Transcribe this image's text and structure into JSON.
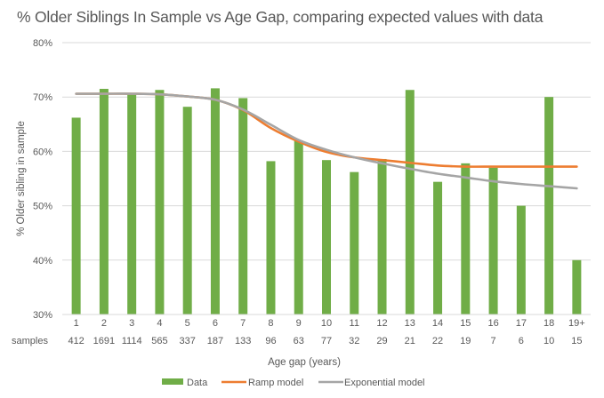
{
  "chart_data": {
    "type": "bar",
    "title": "% Older Siblings In Sample vs Age Gap, comparing expected values with data",
    "xlabel": "Age  gap (years)",
    "ylabel": "% Older sibling in sample",
    "ylim": [
      0.3,
      0.8
    ],
    "yticks": [
      "30%",
      "40%",
      "50%",
      "60%",
      "70%",
      "80%"
    ],
    "ytick_values": [
      0.3,
      0.4,
      0.5,
      0.6,
      0.7,
      0.8
    ],
    "grid": true,
    "legend_position": "bottom",
    "categories": [
      "1",
      "2",
      "3",
      "4",
      "5",
      "6",
      "7",
      "8",
      "9",
      "10",
      "11",
      "12",
      "13",
      "14",
      "15",
      "16",
      "17",
      "18",
      "19+"
    ],
    "row2_label": "samples",
    "samples": [
      "412",
      "1691",
      "1114",
      "565",
      "337",
      "187",
      "133",
      "96",
      "63",
      "77",
      "32",
      "29",
      "21",
      "22",
      "19",
      "7",
      "6",
      "10",
      "15"
    ],
    "series": [
      {
        "name": "Data",
        "kind": "bar",
        "color": "#70AD47",
        "values": [
          0.662,
          0.715,
          0.705,
          0.713,
          0.682,
          0.716,
          0.698,
          0.582,
          0.62,
          0.584,
          0.562,
          0.586,
          0.713,
          0.544,
          0.578,
          0.57,
          0.5,
          0.7,
          0.4
        ]
      },
      {
        "name": "Ramp model",
        "kind": "line",
        "color": "#ED7D31",
        "values": [
          0.706,
          0.706,
          0.706,
          0.705,
          0.701,
          0.695,
          0.676,
          0.643,
          0.618,
          0.599,
          0.589,
          0.584,
          0.579,
          0.574,
          0.572,
          0.572,
          0.572,
          0.572,
          0.572
        ]
      },
      {
        "name": "Exponential model",
        "kind": "line",
        "color": "#A5A5A5",
        "values": [
          0.706,
          0.706,
          0.706,
          0.705,
          0.701,
          0.695,
          0.677,
          0.649,
          0.621,
          0.603,
          0.589,
          0.578,
          0.568,
          0.559,
          0.552,
          0.545,
          0.54,
          0.536,
          0.532
        ]
      }
    ]
  }
}
